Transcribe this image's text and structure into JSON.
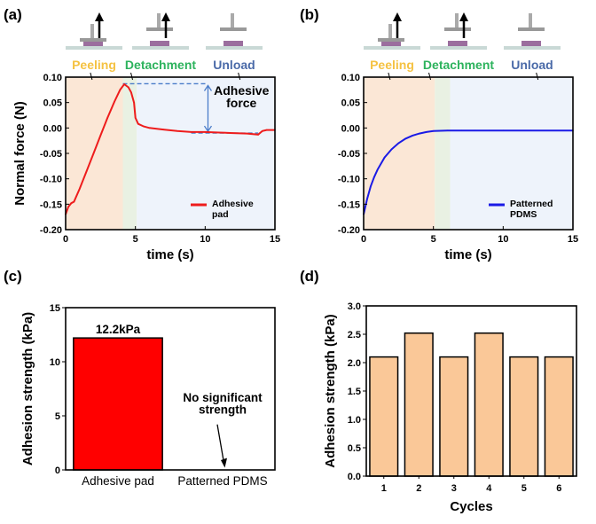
{
  "chart_data": [
    {
      "panel_label": "(a)",
      "type": "line",
      "xlabel": "time (s)",
      "ylabel": "Normal force (N)",
      "xlim": [
        0,
        15
      ],
      "ylim": [
        -0.2,
        0.1
      ],
      "xticks": [
        "0",
        "5",
        "10",
        "15"
      ],
      "yticks": [
        "0.10",
        "0.05",
        "0.00",
        "-0.05",
        "-0.10",
        "-0.15",
        "-0.20"
      ],
      "phases": [
        {
          "label": "Peeling",
          "range": [
            0,
            4.1
          ],
          "color": "#fbe7d6",
          "label_color": "#f5c242"
        },
        {
          "label": "Detachment",
          "range": [
            4.1,
            5.1
          ],
          "color": "#e9f1e3",
          "label_color": "#2db35d"
        },
        {
          "label": "Unload",
          "range": [
            5.1,
            15
          ],
          "color": "#eef3fb",
          "label_color": "#4a6aa8"
        }
      ],
      "annotation": {
        "line1": "Adhesive",
        "line2": "force",
        "top": 0.087,
        "bottom": -0.01
      },
      "series": [
        {
          "name_line1": "Adhesive",
          "name_line2": "pad",
          "color": "#ee1c1c",
          "x": [
            0,
            0.2,
            0.4,
            0.6,
            1,
            1.5,
            2,
            2.5,
            3,
            3.5,
            3.9,
            4.2,
            4.5,
            4.7,
            4.9,
            5.0,
            5.2,
            5.6,
            6,
            7,
            8,
            9,
            10,
            11,
            12,
            13,
            13.8,
            14.1,
            14.4,
            15
          ],
          "y": [
            -0.17,
            -0.155,
            -0.148,
            -0.145,
            -0.12,
            -0.085,
            -0.05,
            -0.015,
            0.02,
            0.052,
            0.075,
            0.086,
            0.08,
            0.07,
            0.05,
            0.02,
            0.008,
            0.003,
            0.0,
            -0.003,
            -0.006,
            -0.008,
            -0.008,
            -0.009,
            -0.01,
            -0.011,
            -0.013,
            -0.006,
            -0.004,
            -0.004
          ]
        }
      ]
    },
    {
      "panel_label": "(b)",
      "type": "line",
      "xlabel": "time (s)",
      "ylabel": "",
      "xlim": [
        0,
        15
      ],
      "ylim": [
        -0.2,
        0.1
      ],
      "xticks": [
        "0",
        "5",
        "10",
        "15"
      ],
      "yticks": [
        "0.10",
        "0.05",
        "0.00",
        "-0.05",
        "-0.10",
        "-0.15",
        "-0.20"
      ],
      "phases": [
        {
          "label": "Peeling",
          "range": [
            0,
            5.1
          ],
          "color": "#fbe7d6",
          "label_color": "#f5c242"
        },
        {
          "label": "Detachment",
          "range": [
            5.1,
            6.2
          ],
          "color": "#e9f1e3",
          "label_color": "#2db35d"
        },
        {
          "label": "Unload",
          "range": [
            6.2,
            15
          ],
          "color": "#eef3fb",
          "label_color": "#4a6aa8"
        }
      ],
      "series": [
        {
          "name_line1": "Patterned",
          "name_line2": "PDMS",
          "color": "#1a1ae6",
          "x": [
            0,
            0.25,
            0.5,
            0.75,
            1,
            1.5,
            2,
            2.5,
            3,
            3.5,
            4,
            4.5,
            5,
            6,
            7,
            8,
            9,
            10,
            12,
            15
          ],
          "y": [
            -0.17,
            -0.14,
            -0.115,
            -0.097,
            -0.082,
            -0.058,
            -0.042,
            -0.03,
            -0.021,
            -0.015,
            -0.011,
            -0.008,
            -0.006,
            -0.005,
            -0.005,
            -0.005,
            -0.005,
            -0.005,
            -0.005,
            -0.005
          ]
        }
      ]
    },
    {
      "panel_label": "(c)",
      "type": "bar",
      "xlabel": "",
      "ylabel": "Adhesion strength (kPa)",
      "ylim": [
        0,
        15
      ],
      "yticks": [
        "0",
        "5",
        "10",
        "15"
      ],
      "categories": [
        "Adhesive pad",
        "Patterned PDMS"
      ],
      "values": [
        12.2,
        0
      ],
      "colors": [
        "#ff0000",
        "#ff0000"
      ],
      "data_label": "12.2kPa",
      "annotation_line1": "No significant",
      "annotation_line2": "strength"
    },
    {
      "panel_label": "(d)",
      "type": "bar",
      "xlabel": "Cycles",
      "ylabel": "Adhesion strength (kPa)",
      "ylim": [
        0,
        3.0
      ],
      "yticks": [
        "0.0",
        "0.5",
        "1.0",
        "1.5",
        "2.0",
        "2.5",
        "3.0"
      ],
      "categories": [
        "1",
        "2",
        "3",
        "4",
        "5",
        "6"
      ],
      "values": [
        2.1,
        2.52,
        2.1,
        2.52,
        2.1,
        2.1
      ],
      "color": "#fac898"
    }
  ]
}
